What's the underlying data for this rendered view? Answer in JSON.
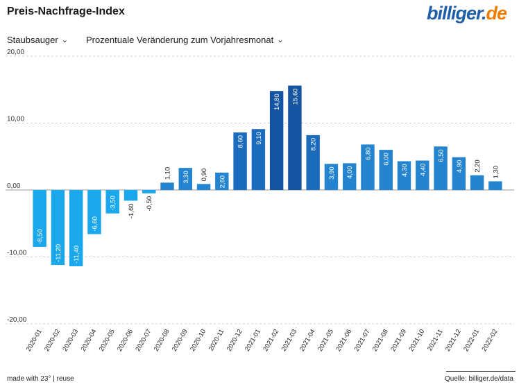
{
  "header": {
    "title": "Preis-Nachfrage-Index",
    "logo_main": "billiger.",
    "logo_tld": "de"
  },
  "controls": {
    "category": "Staubsauger",
    "measure": "Prozentuale Veränderung zum Vorjahresmonat"
  },
  "footer": {
    "made_with": "made with 23° | reuse",
    "source": "Quelle: billiger.de/data"
  },
  "chart_data": {
    "type": "bar",
    "categories": [
      "2020-01",
      "2020-02",
      "2020-03",
      "2020-04",
      "2020-05",
      "2020-06",
      "2020-07",
      "2020-08",
      "2020-09",
      "2020-10",
      "2020-11",
      "2020-12",
      "2021-01",
      "2021-02",
      "2021-03",
      "2021-04",
      "2021-05",
      "2021-06",
      "2021-07",
      "2021-08",
      "2021-09",
      "2021-10",
      "2021-11",
      "2021-12",
      "2022-01",
      "2022-02"
    ],
    "values": [
      -8.5,
      -11.2,
      -11.4,
      -6.6,
      -3.5,
      -1.6,
      -0.5,
      1.1,
      3.3,
      0.9,
      2.6,
      8.6,
      9.1,
      14.8,
      15.6,
      8.2,
      3.9,
      4.0,
      6.8,
      6.0,
      4.3,
      4.4,
      6.5,
      4.9,
      2.2,
      1.3
    ],
    "value_labels": [
      "-8,50",
      "-11,20",
      "-11,40",
      "-6,60",
      "-3,50",
      "-1,60",
      "-0,50",
      "1,10",
      "3,30",
      "0,90",
      "2,60",
      "8,60",
      "9,10",
      "14,80",
      "15,60",
      "8,20",
      "3,90",
      "4,00",
      "6,80",
      "6,00",
      "4,30",
      "4,40",
      "6,50",
      "4,90",
      "2,20",
      "1,30"
    ],
    "y_ticks": [
      20,
      10,
      0,
      -10,
      -20
    ],
    "y_tick_labels": [
      "20,00",
      "10,00",
      "0,00",
      "-10,00",
      "-20,00"
    ],
    "ylim": [
      -20,
      20
    ],
    "grid": true,
    "colors": {
      "negative": "#1aa7ec",
      "low": "#2484cf",
      "mid": "#1c6cbd",
      "high": "#1554a0",
      "grid": "#cfcfcf",
      "zero_line": "#999999"
    }
  }
}
